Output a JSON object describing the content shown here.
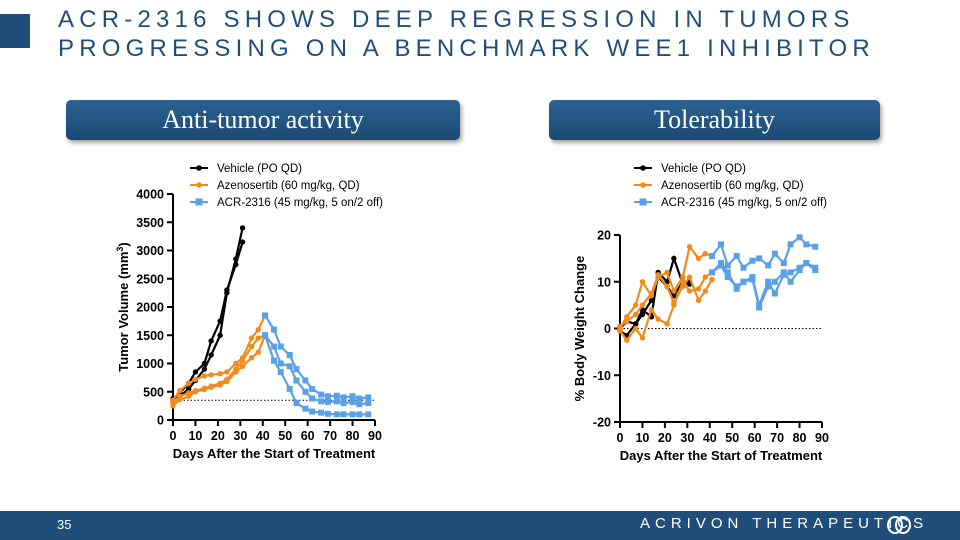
{
  "slide": {
    "title_line1": "ACR-2316 shows deep regression in tumors",
    "title_line2": "progressing on a benchmark WEE1 inhibitor",
    "page_number": "35",
    "company": "ACRIVON THERAPEUTICS",
    "colors": {
      "brand": "#1f4e7a",
      "vehicle": "#000000",
      "azenosertib": "#f28a1c",
      "acr2316": "#5aa0e6"
    }
  },
  "panels": {
    "left_header": "Anti-tumor activity",
    "right_header": "Tolerability"
  },
  "chart_data": [
    {
      "type": "line",
      "title": "Anti-tumor activity",
      "xlabel": "Days After the Start of Treatment",
      "ylabel": "Tumor Volume (mm",
      "ylabel_sup": "3",
      "ylabel_end": ")",
      "xlim": [
        0,
        90
      ],
      "ylim": [
        0,
        4000
      ],
      "xticks": [
        0,
        10,
        20,
        30,
        40,
        50,
        60,
        70,
        80,
        90
      ],
      "xtick_labels": [
        "0",
        "10",
        "20",
        "30",
        "40",
        "50",
        "60",
        "70",
        "80",
        "90"
      ],
      "yticks": [
        0,
        500,
        1000,
        1500,
        2000,
        2500,
        3000,
        3500,
        4000
      ],
      "ytick_labels": [
        "0",
        "500",
        "1000",
        "1500",
        "2000",
        "2500",
        "3000",
        "3500",
        "4000"
      ],
      "reference_line": 350,
      "legend": [
        "Vehicle (PO QD)",
        "Azenosertib (60 mg/kg, QD)",
        "ACR-2316 (45 mg/kg, 5 on/2 off)"
      ],
      "series": [
        {
          "name": "Vehicle (PO QD)",
          "group": 0,
          "marker": "circle",
          "x": [
            0,
            3,
            7,
            10,
            14,
            17,
            21,
            24,
            28,
            31
          ],
          "y": [
            380,
            420,
            550,
            700,
            900,
            1150,
            1500,
            2250,
            2850,
            3400
          ]
        },
        {
          "name": "Vehicle (PO QD)",
          "group": 0,
          "marker": "circle",
          "x": [
            0,
            3,
            7,
            10,
            14,
            17,
            21,
            24,
            28,
            31
          ],
          "y": [
            330,
            480,
            650,
            850,
            1000,
            1400,
            1750,
            2300,
            2750,
            3150
          ]
        },
        {
          "name": "Azenosertib (60 mg/kg, QD)",
          "group": 1,
          "marker": "circle",
          "x": [
            0,
            3,
            7,
            10,
            14,
            17,
            21,
            24,
            28,
            31,
            35,
            38,
            41
          ],
          "y": [
            350,
            520,
            650,
            720,
            780,
            800,
            820,
            850,
            1000,
            1100,
            1450,
            1600,
            1850
          ]
        },
        {
          "name": "Azenosertib (60 mg/kg, QD)",
          "group": 1,
          "marker": "circle",
          "x": [
            0,
            3,
            7,
            10,
            14,
            17,
            21,
            24,
            28,
            31,
            35,
            38,
            41
          ],
          "y": [
            300,
            420,
            480,
            520,
            560,
            600,
            650,
            720,
            900,
            1050,
            1300,
            1450,
            1500
          ]
        },
        {
          "name": "Azenosertib (60 mg/kg, QD)",
          "group": 1,
          "marker": "circle",
          "x": [
            0,
            3,
            7,
            10,
            14,
            17,
            21,
            24,
            28,
            31,
            35,
            38,
            41
          ],
          "y": [
            250,
            360,
            420,
            500,
            540,
            580,
            620,
            680,
            850,
            950,
            1100,
            1200,
            1500
          ]
        },
        {
          "name": "ACR-2316 (45 mg/kg, 5 on/2 off)",
          "group": 2,
          "marker": "square",
          "x": [
            41,
            45,
            48,
            52,
            55,
            59,
            62,
            66,
            69,
            73,
            76,
            80,
            83,
            87
          ],
          "y": [
            1850,
            1600,
            1300,
            1150,
            900,
            700,
            550,
            450,
            420,
            430,
            400,
            420,
            380,
            400
          ]
        },
        {
          "name": "ACR-2316 (45 mg/kg, 5 on/2 off)",
          "group": 2,
          "marker": "square",
          "x": [
            41,
            45,
            48,
            52,
            55,
            59,
            62,
            66,
            69,
            73,
            76,
            80,
            83,
            87
          ],
          "y": [
            1500,
            1300,
            1000,
            950,
            700,
            500,
            380,
            330,
            320,
            330,
            300,
            320,
            280,
            300
          ]
        },
        {
          "name": "ACR-2316 (45 mg/kg, 5 on/2 off)",
          "group": 2,
          "marker": "square",
          "x": [
            41,
            45,
            48,
            52,
            55,
            59,
            62,
            66,
            69,
            73,
            76,
            80,
            83,
            87
          ],
          "y": [
            1500,
            1050,
            850,
            550,
            300,
            200,
            150,
            130,
            110,
            100,
            100,
            100,
            100,
            100
          ]
        }
      ]
    },
    {
      "type": "line",
      "title": "Tolerability",
      "xlabel": "Days After the Start of Treatment",
      "ylabel": "% Body Weight Change",
      "xlim": [
        0,
        90
      ],
      "ylim": [
        -20,
        20
      ],
      "xticks": [
        0,
        10,
        20,
        30,
        40,
        50,
        60,
        70,
        80,
        90
      ],
      "xtick_labels": [
        "0",
        "10",
        "20",
        "30",
        "40",
        "50",
        "60",
        "70",
        "80",
        "90"
      ],
      "yticks": [
        -20,
        -10,
        0,
        10,
        20
      ],
      "ytick_labels": [
        "-20",
        "-10",
        "0",
        "10",
        "20"
      ],
      "reference_line": 0,
      "legend": [
        "Vehicle (PO QD)",
        "Azenosertib (60 mg/kg, QD)",
        "ACR-2316 (45 mg/kg, 5 on/2 off)"
      ],
      "series": [
        {
          "name": "Vehicle (PO QD)",
          "group": 0,
          "marker": "circle",
          "x": [
            0,
            3,
            7,
            10,
            14,
            17,
            21,
            24,
            28,
            31
          ],
          "y": [
            0,
            1.5,
            1,
            4,
            2.5,
            12,
            10,
            15,
            9.5,
            10
          ]
        },
        {
          "name": "Vehicle (PO QD)",
          "group": 0,
          "marker": "circle",
          "x": [
            0,
            3,
            7,
            10,
            14,
            17,
            21,
            24,
            28,
            31
          ],
          "y": [
            -0.5,
            -1.5,
            1,
            3,
            6,
            11,
            9,
            7,
            10,
            9.5
          ]
        },
        {
          "name": "Azenosertib (60 mg/kg, QD)",
          "group": 1,
          "marker": "circle",
          "x": [
            0,
            3,
            7,
            10,
            14,
            17,
            21,
            24,
            28,
            31,
            35,
            38,
            41
          ],
          "y": [
            0,
            2.5,
            5,
            10,
            7,
            11,
            12,
            8,
            11,
            17.5,
            15,
            16,
            15.5
          ]
        },
        {
          "name": "Azenosertib (60 mg/kg, QD)",
          "group": 1,
          "marker": "circle",
          "x": [
            0,
            3,
            7,
            10,
            14,
            17,
            21,
            24,
            28,
            31,
            35,
            38,
            41
          ],
          "y": [
            0.5,
            1.5,
            3,
            5,
            7.5,
            11.5,
            9,
            5.5,
            9,
            11,
            6,
            8,
            10.5
          ]
        },
        {
          "name": "Azenosertib (60 mg/kg, QD)",
          "group": 1,
          "marker": "circle",
          "x": [
            0,
            3,
            7,
            10,
            14,
            17,
            21,
            24,
            28,
            31,
            35,
            38,
            41
          ],
          "y": [
            -0.5,
            -2.5,
            0,
            -2,
            4,
            2,
            1,
            5,
            10,
            8,
            8.5,
            11,
            12
          ]
        },
        {
          "name": "ACR-2316 (45 mg/kg, 5 on/2 off)",
          "group": 2,
          "marker": "square",
          "x": [
            41,
            45,
            48,
            52,
            55,
            59,
            62,
            66,
            69,
            73,
            76,
            80,
            83,
            87
          ],
          "y": [
            15.5,
            18,
            13.5,
            15.5,
            13,
            14.5,
            15,
            13.5,
            16,
            14,
            18,
            19.5,
            18,
            17.5
          ]
        },
        {
          "name": "ACR-2316 (45 mg/kg, 5 on/2 off)",
          "group": 2,
          "marker": "square",
          "x": [
            41,
            45,
            48,
            52,
            55,
            59,
            62,
            66,
            69,
            73,
            76,
            80,
            83,
            87
          ],
          "y": [
            12,
            14,
            12,
            8.5,
            10,
            11,
            5,
            10,
            7.5,
            11.5,
            12,
            13,
            14,
            12.5
          ]
        },
        {
          "name": "ACR-2316 (45 mg/kg, 5 on/2 off)",
          "group": 2,
          "marker": "square",
          "x": [
            41,
            45,
            48,
            52,
            55,
            59,
            62,
            66,
            69,
            73,
            76,
            80,
            83,
            87
          ],
          "y": [
            12,
            13.5,
            11,
            9,
            10,
            10.5,
            4.5,
            9,
            10,
            12,
            10,
            12.5,
            14,
            13
          ]
        }
      ]
    }
  ]
}
